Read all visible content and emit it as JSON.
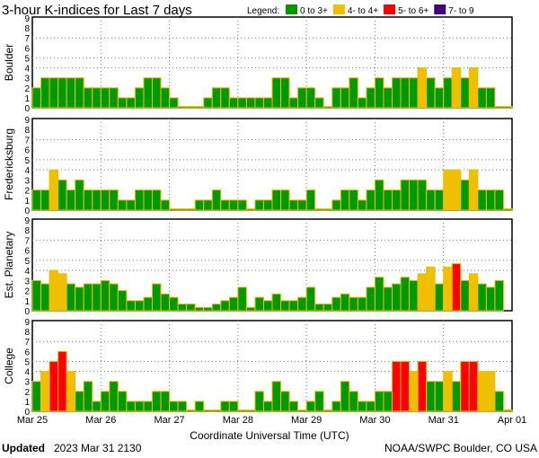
{
  "chart_data": {
    "type": "bar",
    "title": "3-hour K-indices for Last 7 days",
    "legend_label": "Legend:",
    "legend": [
      {
        "label": "0 to 3+",
        "color": "#009900"
      },
      {
        "label": "4- to 4+",
        "color": "#f0c000"
      },
      {
        "label": "5- to 6+",
        "color": "#ff0000"
      },
      {
        "label": "7- to 9",
        "color": "#400080"
      }
    ],
    "xlabel": "Coordinate Universal Time (UTC)",
    "x_ticks": [
      "Mar 25",
      "Mar 26",
      "Mar 27",
      "Mar 28",
      "Mar 29",
      "Mar 30",
      "Mar 31",
      "Apr 01"
    ],
    "y_ticks": [
      "0",
      "1",
      "2",
      "3",
      "4",
      "5",
      "6",
      "7",
      "8",
      "9"
    ],
    "ylim": [
      0,
      9
    ],
    "bars_per_day": 8,
    "grid": "dotted at 4, 5, 7 and day boundaries",
    "series": [
      {
        "name": "Boulder",
        "values": [
          2,
          3,
          3,
          3,
          3,
          3,
          2,
          2,
          2,
          2,
          1,
          1,
          2,
          3,
          3,
          2,
          1,
          0,
          0,
          0,
          1,
          2,
          2,
          1,
          1,
          1,
          1,
          1,
          3,
          3,
          1,
          2,
          2,
          1,
          0,
          2,
          2,
          3,
          1,
          2,
          3,
          2,
          3,
          3,
          3,
          4,
          3,
          2,
          3,
          4,
          3,
          4,
          2,
          2,
          0,
          0
        ]
      },
      {
        "name": "Fredericksburg",
        "values": [
          2,
          2,
          4,
          3,
          2,
          3,
          2,
          2,
          2,
          2,
          1,
          1,
          2,
          2,
          2,
          1,
          0,
          0,
          0,
          1,
          1,
          2,
          1,
          1,
          1,
          0,
          1,
          1,
          2,
          2,
          1,
          1,
          2,
          0,
          0,
          1,
          2,
          2,
          1,
          2,
          3,
          2,
          2,
          3,
          3,
          3,
          2,
          2,
          4,
          4,
          3,
          4,
          2,
          2,
          2,
          0
        ]
      },
      {
        "name": "Est. Planetary",
        "values": [
          3,
          2.67,
          4,
          3.67,
          2.67,
          2.33,
          2.67,
          2.67,
          3,
          2.67,
          2,
          1,
          1,
          1.33,
          2.67,
          1.67,
          1.33,
          0.67,
          0.67,
          0.33,
          0.33,
          0.67,
          1,
          1.33,
          2.33,
          0.33,
          1.33,
          1,
          1.67,
          1,
          1,
          1.33,
          2.33,
          0.67,
          0.67,
          1.33,
          1.67,
          1.33,
          1.33,
          2.33,
          3.33,
          2.33,
          2.67,
          3.33,
          3,
          3.67,
          4.33,
          2.67,
          4.33,
          4.67,
          3,
          3.67,
          2.67,
          2.33,
          3
        ]
      },
      {
        "name": "College",
        "values": [
          3,
          4,
          5,
          6,
          4,
          2,
          3,
          1,
          2,
          3,
          2,
          1,
          1,
          1,
          2,
          2,
          1,
          1,
          0,
          1,
          0,
          0,
          1,
          1,
          0,
          0,
          2,
          1,
          3,
          2,
          1,
          0,
          1,
          2,
          0,
          1,
          3,
          2,
          1,
          1,
          2,
          2,
          5,
          5,
          4,
          5,
          3,
          3,
          4,
          3,
          5,
          5,
          4,
          4,
          2,
          0
        ]
      }
    ]
  },
  "footer": {
    "updated_label": "Updated",
    "updated_value": "2023 Mar 31 2130",
    "source": "NOAA/SWPC Boulder, CO USA"
  }
}
